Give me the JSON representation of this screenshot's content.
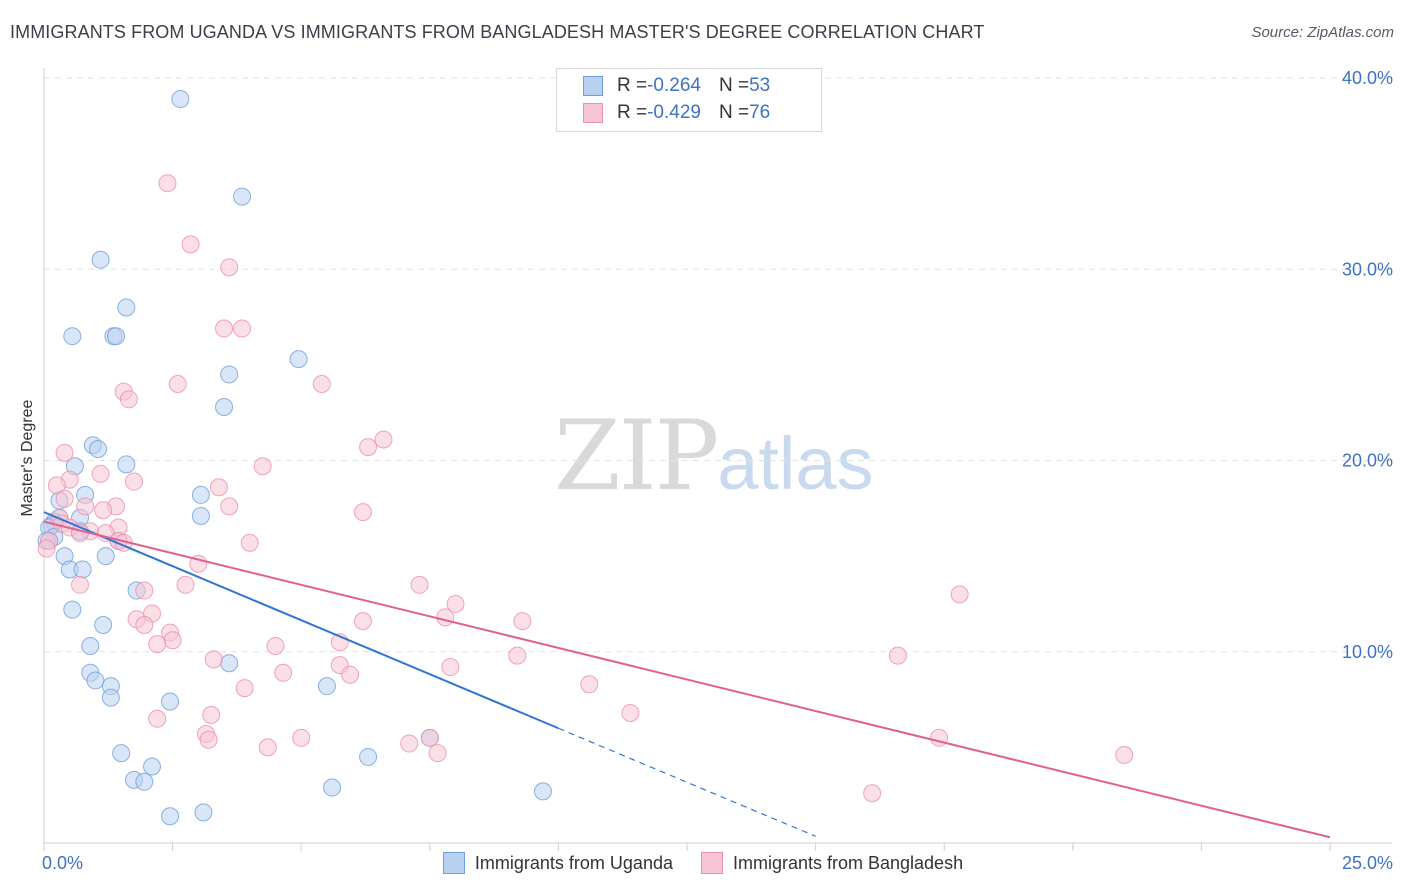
{
  "title": "IMMIGRANTS FROM UGANDA VS IMMIGRANTS FROM BANGLADESH MASTER'S DEGREE CORRELATION CHART",
  "source": "Source: ZipAtlas.com",
  "watermark": {
    "zip": "ZIP",
    "atlas": "atlas"
  },
  "legend": {
    "uganda": {
      "r_label": "R = ",
      "r_value": "-0.264",
      "n_label": "N = ",
      "n_value": "53"
    },
    "bangladesh": {
      "r_label": "R = ",
      "r_value": "-0.429",
      "n_label": "N = ",
      "n_value": "76"
    }
  },
  "colors": {
    "uganda_fill": "#b9d1f0",
    "uganda_stroke": "#6e9fdc",
    "uganda_line": "#2f76d2",
    "bangladesh_fill": "#f7c5d4",
    "bangladesh_stroke": "#ec8fab",
    "bangladesh_line": "#e0608f",
    "grid": "#e2e2e2",
    "tick_text": "#3d72c5"
  },
  "chart_data": {
    "type": "scatter",
    "title": "IMMIGRANTS FROM UGANDA VS IMMIGRANTS FROM BANGLADESH MASTER'S DEGREE CORRELATION CHART",
    "xlabel": "",
    "ylabel": "Master's Degree",
    "xlim": [
      0,
      25
    ],
    "ylim": [
      0,
      40
    ],
    "x_tick_labels": [
      "0.0%",
      "25.0%"
    ],
    "y_ticks": [
      10,
      20,
      30,
      40
    ],
    "y_tick_labels": [
      "10.0%",
      "20.0%",
      "30.0%",
      "40.0%"
    ],
    "grid": true,
    "legend_position": "bottom-center",
    "series": [
      {
        "name": "Immigrants from Uganda",
        "points": [
          [
            2.65,
            38.9
          ],
          [
            3.85,
            33.8
          ],
          [
            1.1,
            30.5
          ],
          [
            1.6,
            28.0
          ],
          [
            0.55,
            26.5
          ],
          [
            1.35,
            26.5
          ],
          [
            1.4,
            26.5
          ],
          [
            4.95,
            25.3
          ],
          [
            3.6,
            24.5
          ],
          [
            3.5,
            22.8
          ],
          [
            0.95,
            20.8
          ],
          [
            1.05,
            20.6
          ],
          [
            1.6,
            19.8
          ],
          [
            0.6,
            19.7
          ],
          [
            3.05,
            18.2
          ],
          [
            0.8,
            18.2
          ],
          [
            0.3,
            17.9
          ],
          [
            0.3,
            17.0
          ],
          [
            0.2,
            16.8
          ],
          [
            0.7,
            17.0
          ],
          [
            3.05,
            17.1
          ],
          [
            0.15,
            16.6
          ],
          [
            0.1,
            16.5
          ],
          [
            0.7,
            16.3
          ],
          [
            0.2,
            16.0
          ],
          [
            0.1,
            15.8
          ],
          [
            1.45,
            15.8
          ],
          [
            0.4,
            15.0
          ],
          [
            1.2,
            15.0
          ],
          [
            0.5,
            14.3
          ],
          [
            0.75,
            14.3
          ],
          [
            1.8,
            13.2
          ],
          [
            0.55,
            12.2
          ],
          [
            1.15,
            11.4
          ],
          [
            0.9,
            10.3
          ],
          [
            3.6,
            9.4
          ],
          [
            0.9,
            8.9
          ],
          [
            1.0,
            8.5
          ],
          [
            5.5,
            8.2
          ],
          [
            1.3,
            8.2
          ],
          [
            1.3,
            7.6
          ],
          [
            2.45,
            7.4
          ],
          [
            7.5,
            5.5
          ],
          [
            1.5,
            4.7
          ],
          [
            6.3,
            4.5
          ],
          [
            2.1,
            4.0
          ],
          [
            1.75,
            3.3
          ],
          [
            1.95,
            3.2
          ],
          [
            5.6,
            2.9
          ],
          [
            9.7,
            2.7
          ],
          [
            3.1,
            1.6
          ],
          [
            2.45,
            1.4
          ],
          [
            0.05,
            15.8
          ]
        ],
        "trend": {
          "x0": 0,
          "y0": 17.3,
          "x1": 10.0,
          "y1": 6.0,
          "dashed_to_x": 15.0
        }
      },
      {
        "name": "Immigrants from Bangladesh",
        "points": [
          [
            2.4,
            34.5
          ],
          [
            2.85,
            31.3
          ],
          [
            3.6,
            30.1
          ],
          [
            3.5,
            26.9
          ],
          [
            3.85,
            26.9
          ],
          [
            2.6,
            24.0
          ],
          [
            5.4,
            24.0
          ],
          [
            1.55,
            23.6
          ],
          [
            1.65,
            23.2
          ],
          [
            6.6,
            21.1
          ],
          [
            6.3,
            20.7
          ],
          [
            0.4,
            20.4
          ],
          [
            4.25,
            19.7
          ],
          [
            1.1,
            19.3
          ],
          [
            0.5,
            19.0
          ],
          [
            1.75,
            18.9
          ],
          [
            0.25,
            18.7
          ],
          [
            3.4,
            18.6
          ],
          [
            0.4,
            18.0
          ],
          [
            0.8,
            17.6
          ],
          [
            1.4,
            17.6
          ],
          [
            3.6,
            17.6
          ],
          [
            1.15,
            17.4
          ],
          [
            6.2,
            17.3
          ],
          [
            0.3,
            17.0
          ],
          [
            0.35,
            16.7
          ],
          [
            0.5,
            16.5
          ],
          [
            1.45,
            16.5
          ],
          [
            0.9,
            16.3
          ],
          [
            0.7,
            16.2
          ],
          [
            1.2,
            16.2
          ],
          [
            1.45,
            15.8
          ],
          [
            1.55,
            15.7
          ],
          [
            4.0,
            15.7
          ],
          [
            0.1,
            15.8
          ],
          [
            0.05,
            15.4
          ],
          [
            3.0,
            14.6
          ],
          [
            0.7,
            13.5
          ],
          [
            2.75,
            13.5
          ],
          [
            7.3,
            13.5
          ],
          [
            17.8,
            13.0
          ],
          [
            1.95,
            13.2
          ],
          [
            7.8,
            11.8
          ],
          [
            8.0,
            12.5
          ],
          [
            9.3,
            11.6
          ],
          [
            2.1,
            12.0
          ],
          [
            6.2,
            11.6
          ],
          [
            1.8,
            11.7
          ],
          [
            1.95,
            11.4
          ],
          [
            2.45,
            11.0
          ],
          [
            2.5,
            10.6
          ],
          [
            5.75,
            10.5
          ],
          [
            2.2,
            10.4
          ],
          [
            4.5,
            10.3
          ],
          [
            9.2,
            9.8
          ],
          [
            16.6,
            9.8
          ],
          [
            3.3,
            9.6
          ],
          [
            5.75,
            9.3
          ],
          [
            7.9,
            9.2
          ],
          [
            4.65,
            8.9
          ],
          [
            5.95,
            8.8
          ],
          [
            3.9,
            8.1
          ],
          [
            10.6,
            8.3
          ],
          [
            11.4,
            6.8
          ],
          [
            3.25,
            6.7
          ],
          [
            2.2,
            6.5
          ],
          [
            3.15,
            5.7
          ],
          [
            3.2,
            5.4
          ],
          [
            5.0,
            5.5
          ],
          [
            7.5,
            5.5
          ],
          [
            17.4,
            5.5
          ],
          [
            7.1,
            5.2
          ],
          [
            4.35,
            5.0
          ],
          [
            7.65,
            4.7
          ],
          [
            21.0,
            4.6
          ],
          [
            16.1,
            2.6
          ]
        ],
        "trend": {
          "x0": 0,
          "y0": 16.8,
          "x1": 25.0,
          "y1": 0.3
        }
      }
    ]
  },
  "bottom_legend": {
    "uganda": "Immigrants from Uganda",
    "bangladesh": "Immigrants from Bangladesh"
  },
  "y_axis_label": "Master's Degree"
}
